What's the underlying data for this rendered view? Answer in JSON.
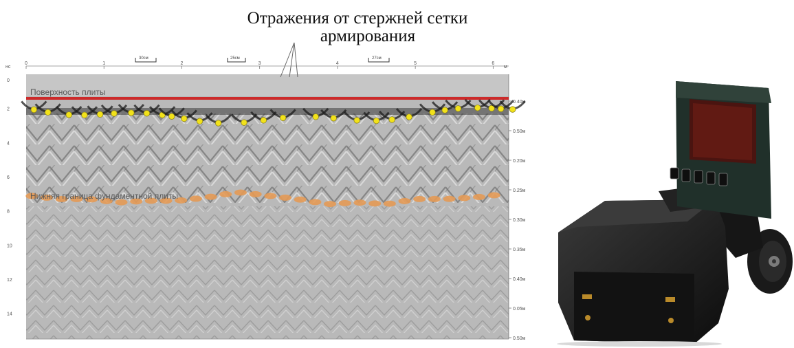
{
  "figure": {
    "title_line1": "Отражения от стержней сетки",
    "title_line2": "армирования"
  },
  "radargram": {
    "surface_label": "Поверхность плиты",
    "bottom_label": "Нижняя граница фундаментной плиты",
    "x_unit": "м",
    "y_unit": "нс",
    "x_ticks": [
      "0",
      "1",
      "2",
      "3",
      "4",
      "5",
      "6"
    ],
    "y_ticks": [
      "0",
      "2",
      "4",
      "6",
      "8",
      "10",
      "12",
      "14"
    ],
    "depth_ticks": [
      "0.40м",
      "0.50м",
      "0.20м",
      "0.25м",
      "0.30м",
      "0.35м",
      "0.40м",
      "0.05м",
      "0.50м"
    ],
    "spacing_labels": [
      "30см",
      "25см",
      "27см"
    ],
    "colors": {
      "surface_line": "#cc2a2a",
      "rebar_marker": "#f2e21a",
      "bottom_boundary": "#e49a55",
      "background": "#bdbdbd"
    },
    "rebar_positions_m": [
      0.1,
      0.28,
      0.55,
      0.75,
      0.95,
      1.13,
      1.35,
      1.55,
      1.75,
      1.87,
      2.03,
      2.23,
      2.47,
      2.8,
      3.05,
      3.3,
      3.72,
      3.95,
      4.25,
      4.5,
      4.7,
      4.92,
      5.22,
      5.38,
      5.55,
      5.8,
      5.98,
      6.1,
      6.25
    ],
    "bottom_boundary_depth_ns": [
      6.7,
      6.9,
      6.9,
      7.1,
      7.0,
      7.0,
      6.8,
      6.5,
      6.7,
      6.9,
      7.2,
      7.1,
      7.2,
      6.9,
      6.9,
      6.8,
      6.6
    ]
  },
  "device": {
    "icon": "gpr-device-photo"
  }
}
